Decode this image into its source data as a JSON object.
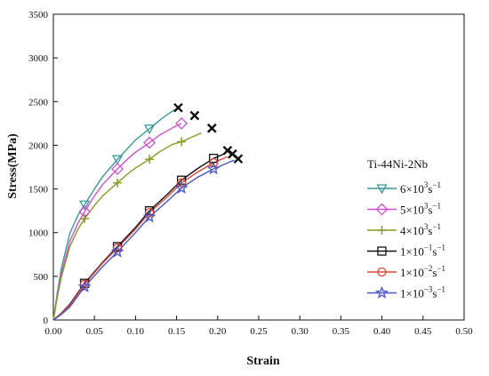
{
  "chart_data": {
    "type": "line",
    "title": "",
    "xlabel": "Strain",
    "ylabel": "Stress(MPa)",
    "xlim": [
      0.0,
      0.5
    ],
    "ylim": [
      0,
      3500
    ],
    "xticks": [
      "0.00",
      "0.05",
      "0.10",
      "0.15",
      "0.20",
      "0.25",
      "0.30",
      "0.35",
      "0.40",
      "0.45",
      "0.50"
    ],
    "yticks": [
      "0",
      "500",
      "1000",
      "1500",
      "2000",
      "2500",
      "3000",
      "3500"
    ],
    "grid": false,
    "legend": {
      "title": "Ti-44Ni-2Nb",
      "placement": "right"
    },
    "series": [
      {
        "label": {
          "base": "6×10",
          "exp": "3",
          "unit": "s",
          "uexp": "−1"
        },
        "color": "#3a9a9a",
        "marker": "triangle-down",
        "x": [
          0.0,
          0.005,
          0.01,
          0.02,
          0.03,
          0.038,
          0.05,
          0.06,
          0.078,
          0.09,
          0.1,
          0.117,
          0.13,
          0.14,
          0.152
        ],
        "y": [
          0,
          320,
          600,
          990,
          1200,
          1320,
          1500,
          1640,
          1840,
          1960,
          2060,
          2190,
          2290,
          2360,
          2430
        ],
        "marker_x": [
          0.038,
          0.078,
          0.117
        ],
        "marker_y": [
          1320,
          1840,
          2190
        ],
        "fracture": [
          0.152,
          2430
        ]
      },
      {
        "label": {
          "base": "5×10",
          "exp": "3",
          "unit": "s",
          "uexp": "−1"
        },
        "color": "#d34fd3",
        "marker": "diamond",
        "x": [
          0.0,
          0.005,
          0.01,
          0.02,
          0.03,
          0.038,
          0.05,
          0.06,
          0.078,
          0.09,
          0.1,
          0.117,
          0.13,
          0.145,
          0.156
        ],
        "y": [
          0,
          290,
          540,
          900,
          1110,
          1240,
          1420,
          1550,
          1730,
          1840,
          1920,
          2030,
          2120,
          2200,
          2250
        ],
        "marker_x": [
          0.038,
          0.078,
          0.117,
          0.156
        ],
        "marker_y": [
          1240,
          1730,
          2030,
          2250
        ],
        "fracture": [
          0.172,
          2340
        ]
      },
      {
        "label": {
          "base": "4×10",
          "exp": "3",
          "unit": "s",
          "uexp": "−1"
        },
        "color": "#8a9a20",
        "marker": "plus",
        "x": [
          0.0,
          0.005,
          0.01,
          0.02,
          0.03,
          0.038,
          0.05,
          0.06,
          0.078,
          0.09,
          0.1,
          0.117,
          0.13,
          0.145,
          0.156,
          0.17,
          0.18
        ],
        "y": [
          0,
          270,
          500,
          840,
          1040,
          1160,
          1310,
          1420,
          1570,
          1670,
          1740,
          1840,
          1930,
          2010,
          2040,
          2100,
          2140
        ],
        "marker_x": [
          0.038,
          0.078,
          0.117,
          0.156
        ],
        "marker_y": [
          1160,
          1570,
          1840,
          2040
        ],
        "fracture": [
          0.193,
          2195
        ]
      },
      {
        "label": {
          "base": "1×10",
          "exp": "−1",
          "unit": "s",
          "uexp": "−1"
        },
        "color": "#111111",
        "marker": "square",
        "x": [
          0.0,
          0.01,
          0.02,
          0.038,
          0.06,
          0.078,
          0.1,
          0.117,
          0.14,
          0.156,
          0.175,
          0.195,
          0.21
        ],
        "y": [
          0,
          80,
          180,
          420,
          660,
          840,
          1060,
          1250,
          1450,
          1600,
          1730,
          1850,
          1910
        ],
        "marker_x": [
          0.038,
          0.078,
          0.117,
          0.156,
          0.195
        ],
        "marker_y": [
          420,
          840,
          1250,
          1600,
          1850
        ],
        "fracture": [
          0.212,
          1940
        ]
      },
      {
        "label": {
          "base": "1×10",
          "exp": "−2",
          "unit": "s",
          "uexp": "−1"
        },
        "color": "#e0453a",
        "marker": "circle",
        "x": [
          0.0,
          0.01,
          0.02,
          0.038,
          0.06,
          0.078,
          0.1,
          0.117,
          0.14,
          0.156,
          0.175,
          0.195,
          0.212
        ],
        "y": [
          0,
          75,
          170,
          410,
          650,
          825,
          1040,
          1230,
          1420,
          1570,
          1690,
          1800,
          1870
        ],
        "marker_x": [
          0.038,
          0.078,
          0.117,
          0.156,
          0.195
        ],
        "marker_y": [
          410,
          825,
          1230,
          1570,
          1800
        ],
        "fracture": [
          0.218,
          1900
        ]
      },
      {
        "label": {
          "base": "1×10",
          "exp": "−3",
          "unit": "s",
          "uexp": "−1"
        },
        "color": "#4a55c8",
        "marker": "star",
        "x": [
          0.0,
          0.01,
          0.02,
          0.038,
          0.06,
          0.078,
          0.1,
          0.117,
          0.14,
          0.156,
          0.175,
          0.195,
          0.21,
          0.22
        ],
        "y": [
          0,
          65,
          150,
          380,
          610,
          780,
          1000,
          1180,
          1370,
          1510,
          1630,
          1730,
          1790,
          1830
        ],
        "marker_x": [
          0.038,
          0.078,
          0.117,
          0.156,
          0.195
        ],
        "marker_y": [
          380,
          780,
          1180,
          1510,
          1730
        ],
        "fracture": [
          0.225,
          1845
        ]
      }
    ]
  }
}
